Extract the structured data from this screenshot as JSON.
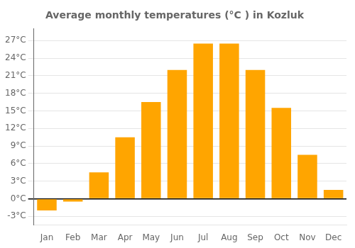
{
  "chart_data": {
    "type": "bar",
    "title": "Average monthly temperatures (°C ) in Kozluk",
    "categories": [
      "Jan",
      "Feb",
      "Mar",
      "Apr",
      "May",
      "Jun",
      "Jul",
      "Aug",
      "Sep",
      "Oct",
      "Nov",
      "Dec"
    ],
    "values": [
      -2.0,
      -0.5,
      4.5,
      10.5,
      16.5,
      22.0,
      26.5,
      26.5,
      22.0,
      15.5,
      7.5,
      1.5
    ],
    "color": "#FFA500",
    "ylim": [
      -4.5,
      29
    ],
    "yticks": [
      {
        "value": -3,
        "label": "-3°C"
      },
      {
        "value": 0,
        "label": "0°C"
      },
      {
        "value": 3,
        "label": "3°C"
      },
      {
        "value": 6,
        "label": "6°C"
      },
      {
        "value": 9,
        "label": "9°C"
      },
      {
        "value": 12,
        "label": "12°C"
      },
      {
        "value": 15,
        "label": "15°C"
      },
      {
        "value": 18,
        "label": "18°C"
      },
      {
        "value": 21,
        "label": "21°C"
      },
      {
        "value": 24,
        "label": "24°C"
      },
      {
        "value": 27,
        "label": "27°C"
      }
    ],
    "grid": true
  }
}
